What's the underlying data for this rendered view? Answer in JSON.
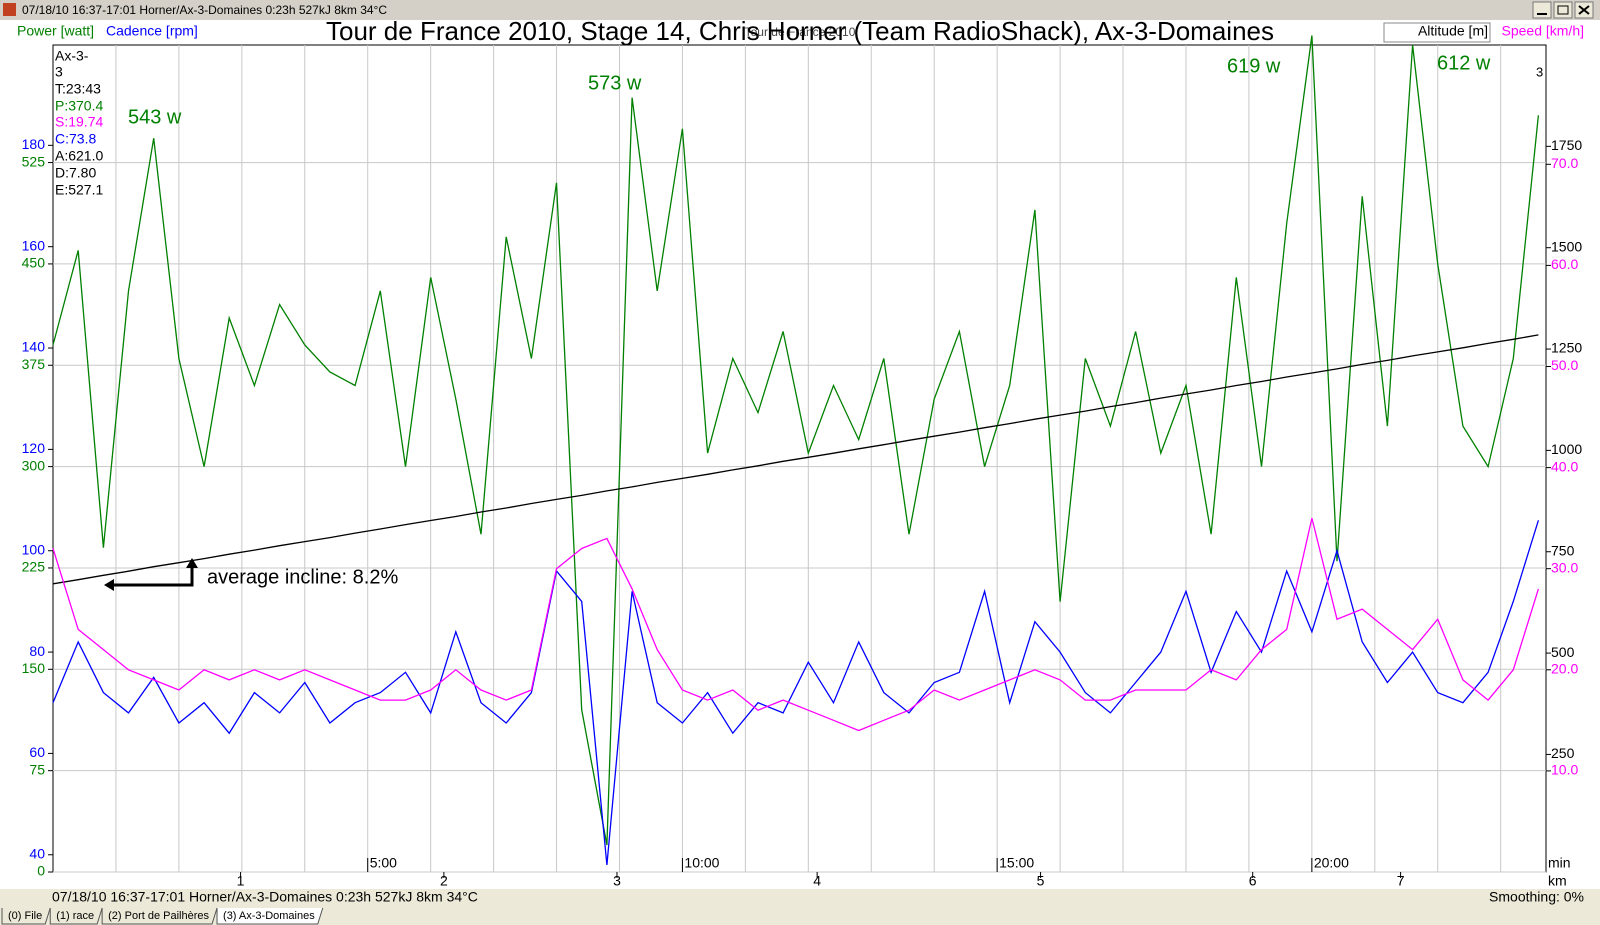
{
  "window": {
    "title": "07/18/10 16:37-17:01 Horner/Ax-3-Domaines 0:23h 527kJ 8km 34°C"
  },
  "status": {
    "left": "07/18/10 16:37-17:01 Horner/Ax-3-Domaines 0:23h 527kJ 8km 34°C",
    "right": "Smoothing: 0%"
  },
  "tabs": [
    "(0) File",
    "(1) race",
    "(2) Port de Pailhères",
    "(3) Ax-3-Domaines"
  ],
  "chart_data": {
    "type": "line",
    "title": "Tour de France 2010, Stage 14, Chris Horner (Team RadioShack), Ax-3-Domaines",
    "watermark": "Tour de France 2010",
    "corner_label": "3",
    "info": [
      "Ax-3-",
      "3",
      "T:23:43",
      "P:370.4",
      "S:19.74",
      "C:73.8",
      "A:621.0",
      "D:7.80",
      "E:527.1"
    ],
    "annotations": [
      "543 w",
      "573 w",
      "619 w",
      "612 w",
      "average incline: 8.2%"
    ],
    "xlabel": "min",
    "x2label": "km",
    "xlim": [
      0,
      23.72
    ],
    "xticks": [
      {
        "value": 5,
        "label": "5:00"
      },
      {
        "value": 10,
        "label": "10:00"
      },
      {
        "value": 15,
        "label": "15:00"
      },
      {
        "value": 20,
        "label": "20:00"
      }
    ],
    "x2ticks": [
      {
        "value": 2.98,
        "label": "1"
      },
      {
        "value": 6.21,
        "label": "2"
      },
      {
        "value": 8.96,
        "label": "3"
      },
      {
        "value": 12.14,
        "label": "4"
      },
      {
        "value": 15.69,
        "label": "5"
      },
      {
        "value": 19.06,
        "label": "6"
      },
      {
        "value": 21.41,
        "label": "7"
      }
    ],
    "xgridticks": [
      1,
      2,
      3,
      4,
      5,
      6,
      7,
      8,
      9,
      10,
      11,
      12,
      13,
      14,
      15,
      16,
      17,
      18,
      19,
      20,
      21,
      22,
      23
    ],
    "ylim": [
      0,
      612
    ],
    "yticks": [
      0,
      75,
      150,
      225,
      300,
      375,
      450,
      525
    ],
    "y3lim": [
      36.6,
      199.8
    ],
    "y3ticks": [
      40,
      60,
      80,
      100,
      120,
      140,
      160,
      180
    ],
    "y2lim": [
      -40,
      2000
    ],
    "y2ticks": [
      250,
      500,
      750,
      1000,
      1250,
      1500,
      1750
    ],
    "y4lim": [
      0,
      81.8
    ],
    "y4ticks": [
      {
        "value": 10,
        "label": "10.0"
      },
      {
        "value": 20,
        "label": "20.0"
      },
      {
        "value": 30,
        "label": "30.0"
      },
      {
        "value": 40,
        "label": "40.0"
      },
      {
        "value": 50,
        "label": "50.0"
      },
      {
        "value": 60,
        "label": "60.0"
      },
      {
        "value": 70,
        "label": "70.0"
      }
    ],
    "grid": true,
    "x": [
      0,
      0.4,
      0.8,
      1.2,
      1.6,
      2.0,
      2.4,
      2.8,
      3.2,
      3.6,
      4.0,
      4.4,
      4.8,
      5.2,
      5.6,
      6.0,
      6.4,
      6.8,
      7.2,
      7.6,
      8.0,
      8.4,
      8.8,
      9.2,
      9.6,
      10.0,
      10.4,
      10.8,
      11.2,
      11.6,
      12.0,
      12.4,
      12.8,
      13.2,
      13.6,
      14.0,
      14.4,
      14.8,
      15.2,
      15.6,
      16.0,
      16.4,
      16.8,
      17.2,
      17.6,
      18.0,
      18.4,
      18.8,
      19.2,
      19.6,
      20.0,
      20.4,
      20.8,
      21.2,
      21.6,
      22.0,
      22.4,
      22.8,
      23.2,
      23.6
    ],
    "series": [
      {
        "name": "Power [watt]",
        "color": "#008000",
        "axis": "y",
        "values": [
          390,
          460,
          240,
          430,
          543,
          380,
          300,
          410,
          360,
          420,
          390,
          370,
          360,
          430,
          300,
          440,
          350,
          250,
          470,
          380,
          510,
          120,
          20,
          573,
          430,
          550,
          310,
          380,
          340,
          400,
          310,
          360,
          320,
          380,
          250,
          350,
          400,
          300,
          360,
          490,
          200,
          380,
          330,
          400,
          310,
          360,
          250,
          440,
          300,
          480,
          619,
          230,
          500,
          330,
          612,
          450,
          330,
          300,
          380,
          560
        ]
      },
      {
        "name": "Cadence [rpm]",
        "color": "#0000ff",
        "axis": "y3",
        "values": [
          70,
          82,
          72,
          68,
          75,
          66,
          70,
          64,
          72,
          68,
          74,
          66,
          70,
          72,
          76,
          68,
          84,
          70,
          66,
          72,
          96,
          90,
          38,
          92,
          70,
          66,
          72,
          64,
          70,
          68,
          78,
          70,
          82,
          72,
          68,
          74,
          76,
          92,
          70,
          86,
          80,
          72,
          68,
          74,
          80,
          92,
          76,
          88,
          80,
          96,
          84,
          100,
          82,
          74,
          80,
          72,
          70,
          76,
          90,
          106
        ]
      },
      {
        "name": "Altitude [m]",
        "color": "#000000",
        "axis": "y2",
        "values": [
          671,
          681,
          692,
          702,
          713,
          723,
          733,
          744,
          754,
          765,
          775,
          785,
          796,
          806,
          817,
          827,
          837,
          848,
          858,
          869,
          879,
          889,
          900,
          910,
          921,
          931,
          941,
          952,
          962,
          973,
          983,
          993,
          1004,
          1014,
          1025,
          1035,
          1045,
          1056,
          1066,
          1077,
          1087,
          1097,
          1108,
          1118,
          1129,
          1139,
          1149,
          1160,
          1170,
          1181,
          1191,
          1201,
          1212,
          1222,
          1233,
          1243,
          1253,
          1264,
          1274,
          1285
        ]
      },
      {
        "name": "Speed [km/h]",
        "color": "#ff00ff",
        "axis": "y4",
        "values": [
          32,
          24,
          22,
          20,
          19,
          18,
          20,
          19,
          20,
          19,
          20,
          19,
          18,
          17,
          17,
          18,
          20,
          18,
          17,
          18,
          30,
          32,
          33,
          28,
          22,
          18,
          17,
          18,
          16,
          17,
          16,
          15,
          14,
          15,
          16,
          18,
          17,
          18,
          19,
          20,
          19,
          17,
          17,
          18,
          18,
          18,
          20,
          19,
          22,
          24,
          35,
          25,
          26,
          24,
          22,
          25,
          19,
          17,
          20,
          28
        ]
      }
    ]
  }
}
